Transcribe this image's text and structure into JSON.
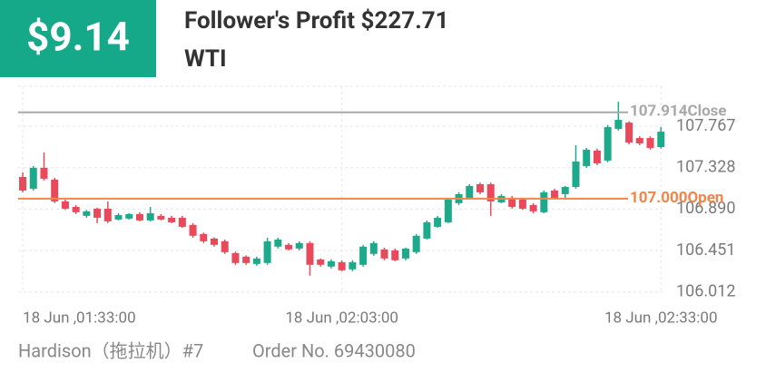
{
  "header": {
    "badge": "$9.14",
    "title": "Follower's Profit $227.71",
    "subtitle": "WTI"
  },
  "footer": {
    "trader": "Hardison（拖拉机）#7",
    "order": "Order No. 69430080"
  },
  "chart_data": {
    "type": "candlestick",
    "x": [
      0,
      1,
      2,
      3,
      4,
      5,
      6,
      7,
      8,
      9,
      10,
      11,
      12,
      13,
      14,
      15,
      16,
      17,
      18,
      19,
      20,
      21,
      22,
      23,
      24,
      25,
      26,
      27,
      28,
      29,
      30,
      31,
      32,
      33,
      34,
      35,
      36,
      37,
      38,
      39,
      40,
      41,
      42,
      43,
      44,
      45,
      46,
      47,
      48,
      49,
      50,
      51,
      52,
      53,
      54,
      55,
      56,
      57,
      58,
      59,
      60
    ],
    "open": [
      107.23,
      107.105,
      107.326,
      107.201,
      106.971,
      106.913,
      106.818,
      106.894,
      106.894,
      106.779,
      106.789,
      106.837,
      106.77,
      106.818,
      106.798,
      106.798,
      106.722,
      106.626,
      106.578,
      106.549,
      106.424,
      106.386,
      106.309,
      106.319,
      106.492,
      106.511,
      106.472,
      106.53,
      106.357,
      106.281,
      106.328,
      106.252,
      106.3,
      106.415,
      106.463,
      106.453,
      106.367,
      106.434,
      106.578,
      106.702,
      106.75,
      106.952,
      107.009,
      107.153,
      107.153,
      106.961,
      107.009,
      106.99,
      106.933,
      106.856,
      107.086,
      107.048,
      107.124,
      107.345,
      107.508,
      107.403,
      107.738,
      107.805,
      107.642,
      107.642,
      107.546
    ],
    "high": [
      107.278,
      107.345,
      107.489,
      107.22,
      106.99,
      106.933,
      106.88,
      106.904,
      106.971,
      106.846,
      106.846,
      106.856,
      106.913,
      106.837,
      106.818,
      106.818,
      106.741,
      106.64,
      106.59,
      106.568,
      106.44,
      106.4,
      106.386,
      106.587,
      106.587,
      106.53,
      106.549,
      106.549,
      106.367,
      106.357,
      106.348,
      106.348,
      106.51,
      106.549,
      106.48,
      106.472,
      106.48,
      106.626,
      106.77,
      106.818,
      107.009,
      107.067,
      107.153,
      107.17,
      107.17,
      107.048,
      107.029,
      107.009,
      106.952,
      107.086,
      107.105,
      107.134,
      107.566,
      107.537,
      107.53,
      107.78,
      108.026,
      107.82,
      107.66,
      107.66,
      107.757
    ],
    "low": [
      107.067,
      107.086,
      107.192,
      106.952,
      106.88,
      106.837,
      106.798,
      106.741,
      106.741,
      106.77,
      106.779,
      106.76,
      106.76,
      106.77,
      106.741,
      106.69,
      106.587,
      106.53,
      106.492,
      106.415,
      106.3,
      106.3,
      106.29,
      106.3,
      106.472,
      106.453,
      106.453,
      106.185,
      106.281,
      106.262,
      106.232,
      106.232,
      106.281,
      106.396,
      106.348,
      106.338,
      106.348,
      106.415,
      106.568,
      106.69,
      106.741,
      106.933,
      106.99,
      107.048,
      106.818,
      106.952,
      106.894,
      106.88,
      106.846,
      106.846,
      106.99,
      106.99,
      107.105,
      107.326,
      107.355,
      107.385,
      107.72,
      107.575,
      107.566,
      107.518,
      107.53
    ],
    "close": [
      107.086,
      107.326,
      107.211,
      106.971,
      106.894,
      106.856,
      106.866,
      106.798,
      106.76,
      106.827,
      106.837,
      106.77,
      106.846,
      106.779,
      106.75,
      106.702,
      106.607,
      106.549,
      106.511,
      106.434,
      106.319,
      106.319,
      106.367,
      106.549,
      106.568,
      106.463,
      106.53,
      106.3,
      106.3,
      106.338,
      106.242,
      106.328,
      106.492,
      106.53,
      106.367,
      106.348,
      106.472,
      106.607,
      106.75,
      106.798,
      106.99,
      107.048,
      107.134,
      107.067,
      106.971,
      107.029,
      106.913,
      106.894,
      106.866,
      107.067,
      107.009,
      107.124,
      107.393,
      107.518,
      107.374,
      107.757,
      107.834,
      107.594,
      107.585,
      107.537,
      107.709
    ],
    "up_color": "#1ea98b",
    "down_color": "#e84a5c",
    "xlim": [
      -0.43,
      60.15
    ],
    "xticks": [
      {
        "value": 0,
        "label": "18 Jun ,01:33:00"
      },
      {
        "value": 30,
        "label": "18 Jun ,02:03:00"
      },
      {
        "value": 60,
        "label": "18 Jun ,02:33:00"
      }
    ],
    "ylim": [
      106.0,
      108.19
    ],
    "yticks": [
      106.012,
      106.451,
      {
        "value": 106.89,
        "label": "106.890"
      },
      107.328,
      107.767
    ],
    "grid": true,
    "reference_lines": [
      {
        "value": 107.914,
        "value_label": "107.914",
        "label": "Close",
        "color": "#a8a8a8"
      },
      {
        "value": 107.0,
        "value_label": "107.000",
        "label": "Open",
        "color": "#f0864a"
      }
    ]
  }
}
